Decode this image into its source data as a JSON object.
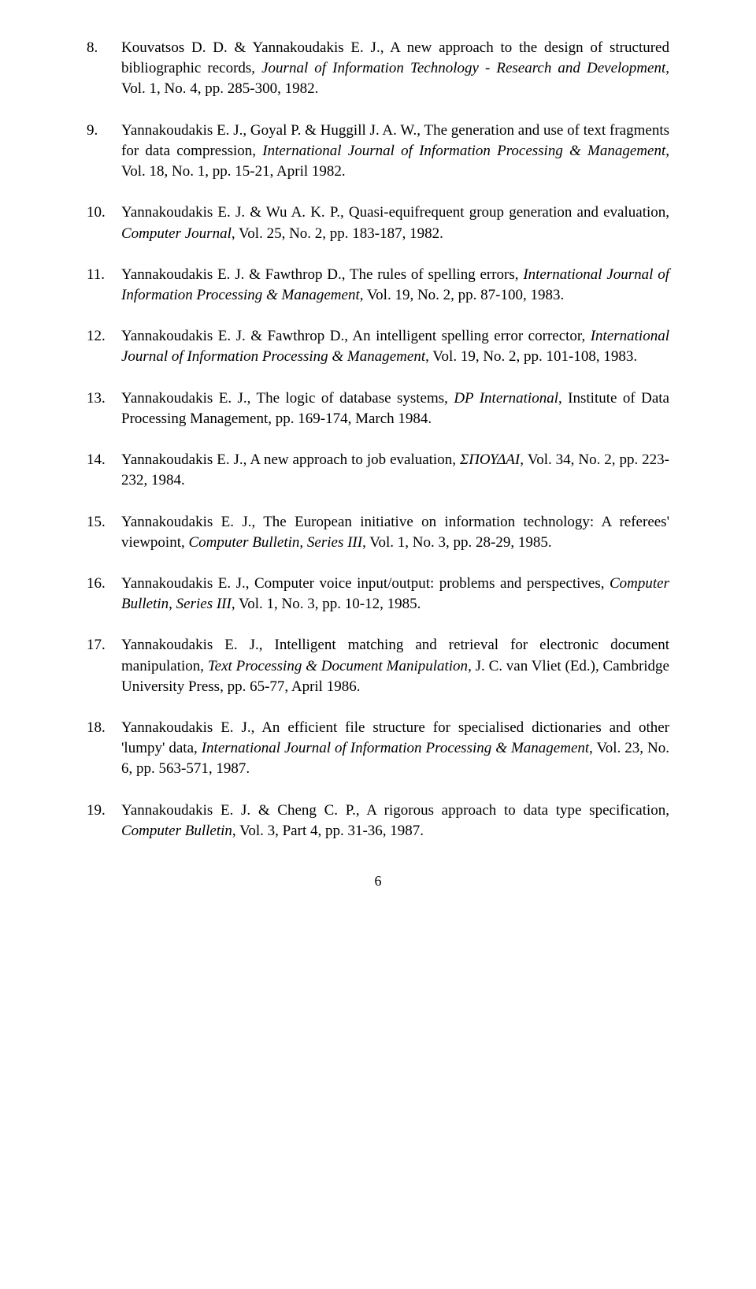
{
  "page_number": "6",
  "references": [
    {
      "num": "8.",
      "segments": [
        {
          "t": "Kouvatsos D. D. & Yannakoudakis E. J., A new approach to the design of structured bibliographic records, ",
          "i": false
        },
        {
          "t": "Journal of Information Technology - Research and Development",
          "i": true
        },
        {
          "t": ", Vol. 1, No. 4, pp. 285-300, 1982.",
          "i": false
        }
      ]
    },
    {
      "num": "9.",
      "segments": [
        {
          "t": "Yannakoudakis E. J., Goyal P. & Huggill J. A. W., The generation and use of text fragments for data compression, ",
          "i": false
        },
        {
          "t": "International Journal of Information Processing & Management",
          "i": true
        },
        {
          "t": ", Vol. 18, No. 1, pp. 15-21, April 1982.",
          "i": false
        }
      ]
    },
    {
      "num": "10.",
      "segments": [
        {
          "t": "Yannakoudakis E. J. & Wu A. K. P., Quasi-equifrequent group generation and evaluation, ",
          "i": false
        },
        {
          "t": "Computer Journal",
          "i": true
        },
        {
          "t": ", Vol. 25, No. 2, pp. 183-187, 1982.",
          "i": false
        }
      ]
    },
    {
      "num": "11.",
      "segments": [
        {
          "t": "Yannakoudakis E. J. & Fawthrop D., The rules of spelling errors, ",
          "i": false
        },
        {
          "t": "International Journal of Information Processing & Management",
          "i": true
        },
        {
          "t": ", Vol. 19, No. 2, pp. 87-100, 1983.",
          "i": false
        }
      ]
    },
    {
      "num": "12.",
      "segments": [
        {
          "t": "Yannakoudakis E. J. & Fawthrop D., An intelligent spelling error corrector, ",
          "i": false
        },
        {
          "t": "International Journal of Information Processing & Management",
          "i": true
        },
        {
          "t": ", Vol. 19, No. 2, pp. 101-108, 1983.",
          "i": false
        }
      ]
    },
    {
      "num": "13.",
      "segments": [
        {
          "t": "Yannakoudakis E. J., The logic of database systems, ",
          "i": false
        },
        {
          "t": "DP International",
          "i": true
        },
        {
          "t": ", Institute of Data Processing Management, pp. 169-174, March 1984.",
          "i": false
        }
      ]
    },
    {
      "num": "14.",
      "segments": [
        {
          "t": "Yannakoudakis E. J., A new approach to job evaluation, ",
          "i": false
        },
        {
          "t": "ΣΠΟΥΔΑΙ",
          "i": true
        },
        {
          "t": ", Vol. 34, No. 2, pp. 223-232, 1984.",
          "i": false
        }
      ]
    },
    {
      "num": "15.",
      "segments": [
        {
          "t": "Yannakoudakis E. J., The European initiative on information technology: A referees' viewpoint, ",
          "i": false
        },
        {
          "t": "Computer Bulletin, Series III",
          "i": true
        },
        {
          "t": ", Vol. 1, No. 3, pp. 28-29, 1985.",
          "i": false
        }
      ]
    },
    {
      "num": "16.",
      "segments": [
        {
          "t": "Yannakoudakis E. J., Computer voice input/output: problems and perspectives, ",
          "i": false
        },
        {
          "t": "Computer Bulletin, Series III",
          "i": true
        },
        {
          "t": ", Vol. 1, No. 3, pp. 10-12, 1985.",
          "i": false
        }
      ]
    },
    {
      "num": "17.",
      "segments": [
        {
          "t": "Yannakoudakis E. J., Intelligent matching and retrieval for electronic document manipulation, ",
          "i": false
        },
        {
          "t": "Text Processing & Document Manipulation",
          "i": true
        },
        {
          "t": ", J. C. van Vliet (Ed.), Cambridge University Press, pp. 65-77, April 1986.",
          "i": false
        }
      ]
    },
    {
      "num": "18.",
      "segments": [
        {
          "t": "Yannakoudakis E. J., An efficient file structure for specialised dictionaries and other 'lumpy' data, ",
          "i": false
        },
        {
          "t": "International Journal of Information Processing & Management",
          "i": true
        },
        {
          "t": ", Vol. 23, No. 6, pp. 563-571, 1987.",
          "i": false
        }
      ]
    },
    {
      "num": "19.",
      "segments": [
        {
          "t": "Yannakoudakis E. J. & Cheng C. P., A rigorous approach to data type specification, ",
          "i": false
        },
        {
          "t": "Computer Bulletin",
          "i": true
        },
        {
          "t": ", Vol. 3, Part 4, pp. 31-36, 1987.",
          "i": false
        }
      ]
    }
  ]
}
